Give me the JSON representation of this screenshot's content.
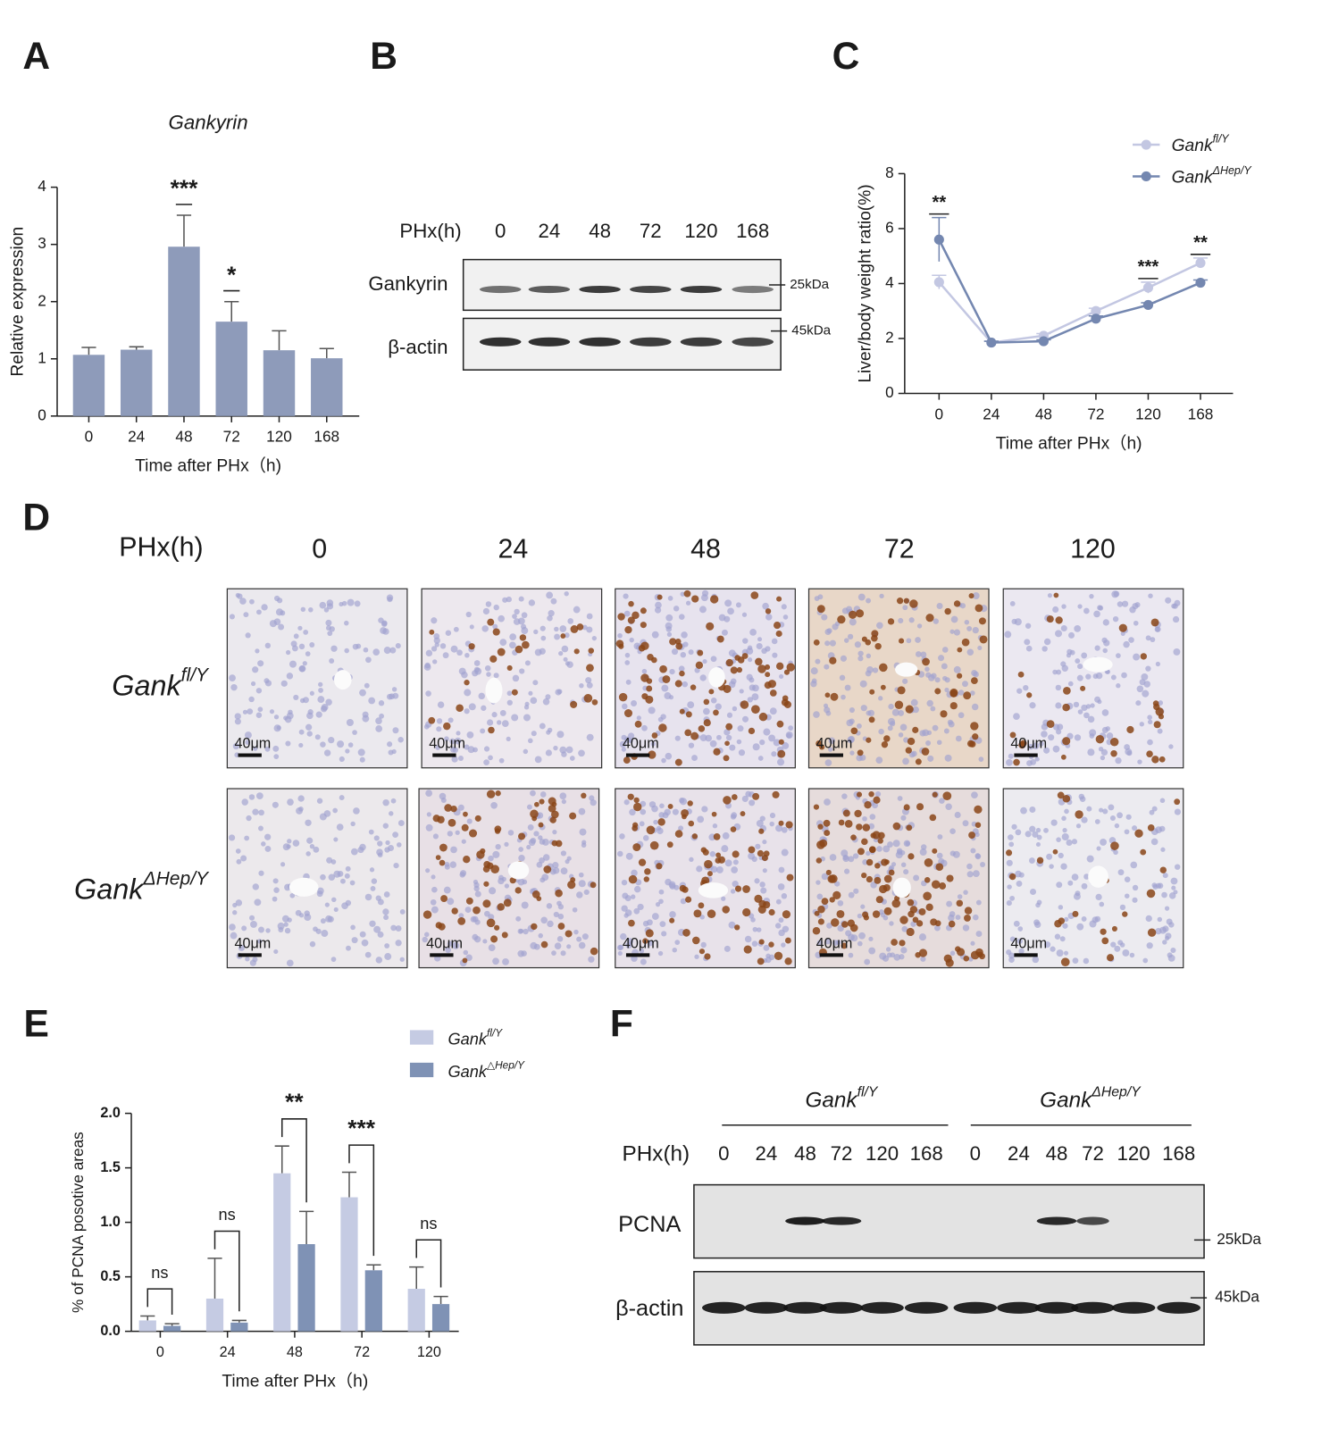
{
  "panel_labels": [
    "A",
    "B",
    "C",
    "D",
    "E",
    "F"
  ],
  "chart_data": [
    {
      "type": "bar",
      "title": "Gankyrin",
      "categories": [
        "0",
        "24",
        "48",
        "72",
        "120",
        "168"
      ],
      "values": [
        1.07,
        1.16,
        2.96,
        1.65,
        1.15,
        1.01
      ],
      "errors": [
        0.13,
        0.05,
        0.55,
        0.35,
        0.34,
        0.17
      ],
      "significance": [
        null,
        null,
        "***",
        "*",
        null,
        null
      ],
      "color": "#8e9bba",
      "ylim": [
        0,
        4
      ],
      "yticks": [
        0,
        1,
        2,
        3,
        4
      ],
      "xlabel": "Time after PHx（h)",
      "ylabel": "Relative expression"
    },
    {
      "type": "line",
      "categories": [
        "0",
        "24",
        "48",
        "72",
        "120",
        "168"
      ],
      "series": [
        {
          "name": "Gank",
          "name_sup": "fl/Y",
          "color": "#c3c7e2",
          "values": [
            4.05,
            1.85,
            2.1,
            3.0,
            3.85,
            4.75
          ],
          "errors": [
            0.25,
            0.05,
            0.08,
            0.1,
            0.2,
            0.18
          ]
        },
        {
          "name": "Gank",
          "name_sup": "ΔHep/Y",
          "color": "#7487b0",
          "values": [
            5.6,
            1.85,
            1.9,
            2.72,
            3.22,
            4.03
          ],
          "errors": [
            0.8,
            0.05,
            0.05,
            0.1,
            0.08,
            0.1
          ]
        }
      ],
      "significance": [
        "**",
        null,
        null,
        null,
        "***",
        "**"
      ],
      "ylim": [
        0,
        8
      ],
      "yticks": [
        0,
        2,
        4,
        6,
        8
      ],
      "xlabel": "Time after PHx（h)",
      "ylabel": "Liver/body weight ratio(%)"
    },
    {
      "type": "grouped_bar",
      "categories": [
        "0",
        "24",
        "48",
        "72",
        "120"
      ],
      "series": [
        {
          "name": "Gank",
          "name_sup": "fl/Y",
          "color": "#c5cbe3",
          "values": [
            0.1,
            0.3,
            1.45,
            1.23,
            0.39
          ],
          "errors": [
            0.04,
            0.37,
            0.25,
            0.23,
            0.2
          ]
        },
        {
          "name": "Gank",
          "name_sup": "△Hep/Y",
          "color": "#7f92b5",
          "values": [
            0.05,
            0.08,
            0.8,
            0.56,
            0.25
          ],
          "errors": [
            0.02,
            0.02,
            0.3,
            0.05,
            0.07
          ]
        }
      ],
      "significance": [
        "ns",
        "ns",
        "**",
        "***",
        "ns"
      ],
      "ylim": [
        0,
        2
      ],
      "yticks": [
        {
          "value": 0,
          "label": "0.0"
        },
        {
          "value": 0.5,
          "label": "0.5"
        },
        {
          "value": 1,
          "label": "1.0"
        },
        {
          "value": 1.5,
          "label": "1.5"
        },
        {
          "value": 2,
          "label": "2.0"
        }
      ],
      "xlabel": "Time after PHx（h)",
      "ylabel": "% of PCNA posotive areas"
    }
  ],
  "blot_b": {
    "header": "PHx(h)",
    "lanes": [
      "0",
      "24",
      "48",
      "72",
      "120",
      "168"
    ],
    "rows": [
      "Gankyrin",
      "β-actin"
    ],
    "markers": [
      "25kDa",
      "45kDa"
    ]
  },
  "ihc_d": {
    "header": "PHx(h)",
    "timepoints": [
      "0",
      "24",
      "48",
      "72",
      "120"
    ],
    "rows": [
      {
        "name": "Gank",
        "name_sup": "fl/Y"
      },
      {
        "name": "Gank",
        "name_sup": "ΔHep/Y"
      }
    ],
    "scale_bar": "40μm"
  },
  "blot_f": {
    "groups": [
      {
        "name": "Gank",
        "name_sup": "fl/Y"
      },
      {
        "name": "Gank",
        "name_sup": "ΔHep/Y"
      }
    ],
    "header": "PHx(h)",
    "lanes": [
      "0",
      "24",
      "48",
      "72",
      "120",
      "168",
      "0",
      "24",
      "48",
      "72",
      "120",
      "168"
    ],
    "rows": [
      "PCNA",
      "β-actin"
    ],
    "markers": [
      "25kDa",
      "45kDa"
    ]
  }
}
